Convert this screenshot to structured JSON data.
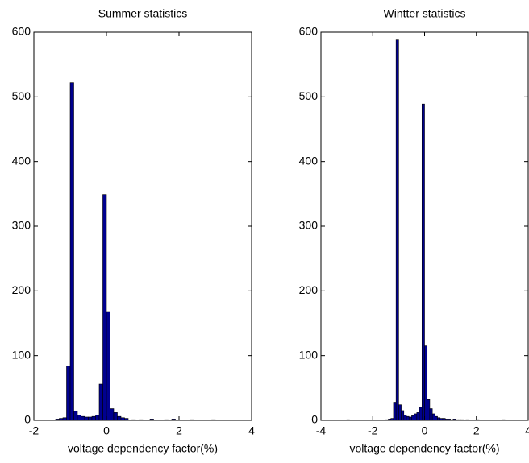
{
  "chart_data": [
    {
      "type": "histogram",
      "title": "Summer statistics",
      "x_label": "voltage dependency factor(%)",
      "color": "#00008f",
      "bins": [
        -1.4,
        -1.3,
        -1.2,
        -1.1,
        -1.0,
        -0.9,
        -0.8,
        -0.7,
        -0.6,
        -0.5,
        -0.4,
        -0.3,
        -0.2,
        -0.1,
        0,
        0.1,
        0.2,
        0.3,
        0.4,
        0.5,
        0.6,
        0.7,
        0.8,
        0.9,
        1.0,
        1.1,
        1.2,
        1.3,
        1.4,
        1.5,
        1.6,
        1.7,
        1.8,
        1.9,
        2.0,
        2.1,
        2.2,
        2.3,
        2.4,
        2.5,
        2.6,
        2.7,
        2.8,
        2.9,
        3.0,
        3.1,
        3.2,
        3.3,
        3.4,
        3.5,
        3.6
      ],
      "values": [
        2,
        3,
        4,
        84,
        522,
        14,
        8,
        6,
        5,
        5,
        6,
        8,
        56,
        349,
        168,
        18,
        12,
        6,
        4,
        3,
        0,
        1,
        0,
        1,
        0,
        0,
        2,
        0,
        0,
        0,
        1,
        0,
        2,
        0,
        0,
        0,
        0,
        1,
        0,
        0,
        0,
        0,
        0,
        1,
        0,
        0,
        0,
        0,
        0,
        0
      ],
      "xlim": [
        -2,
        4
      ],
      "xticks": [
        -2,
        0,
        2,
        4
      ],
      "ylim": [
        0,
        600
      ],
      "yticks": [
        0,
        100,
        200,
        300,
        400,
        500,
        600
      ]
    },
    {
      "type": "histogram",
      "title": "Wintter statistics",
      "x_label": "voltage dependency factor(%)",
      "color": "#00008f",
      "bins": [
        -3.1,
        -3.0,
        -2.9,
        -2.8,
        -2.7,
        -2.6,
        -2.5,
        -2.4,
        -2.3,
        -2.2,
        -2.1,
        -2.0,
        -1.9,
        -1.8,
        -1.7,
        -1.6,
        -1.5,
        -1.4,
        -1.3,
        -1.2,
        -1.1,
        -1.0,
        -0.9,
        -0.8,
        -0.7,
        -0.6,
        -0.5,
        -0.4,
        -0.3,
        -0.2,
        -0.1,
        0,
        0.1,
        0.2,
        0.3,
        0.4,
        0.5,
        0.6,
        0.7,
        0.8,
        0.9,
        1.0,
        1.1,
        1.2,
        1.3,
        1.4,
        1.5,
        1.6,
        1.7,
        1.8,
        1.9,
        2.0,
        2.1,
        2.2,
        2.3,
        2.4,
        2.5,
        2.6,
        2.7,
        2.8,
        2.9,
        3.0,
        3.1
      ],
      "values": [
        0,
        1,
        0,
        0,
        0,
        0,
        0,
        0,
        0,
        0,
        0,
        0,
        0,
        0,
        0,
        0,
        1,
        2,
        3,
        28,
        588,
        24,
        15,
        8,
        6,
        5,
        7,
        10,
        12,
        20,
        489,
        115,
        32,
        18,
        10,
        6,
        4,
        3,
        3,
        2,
        2,
        1,
        2,
        1,
        1,
        1,
        0,
        1,
        0,
        0,
        0,
        1,
        0,
        0,
        0,
        0,
        0,
        0,
        0,
        0,
        0,
        1
      ],
      "xlim": [
        -4,
        4
      ],
      "xticks": [
        -4,
        -2,
        0,
        2,
        4
      ],
      "ylim": [
        0,
        600
      ],
      "yticks": [
        0,
        100,
        200,
        300,
        400,
        500,
        600
      ]
    }
  ]
}
